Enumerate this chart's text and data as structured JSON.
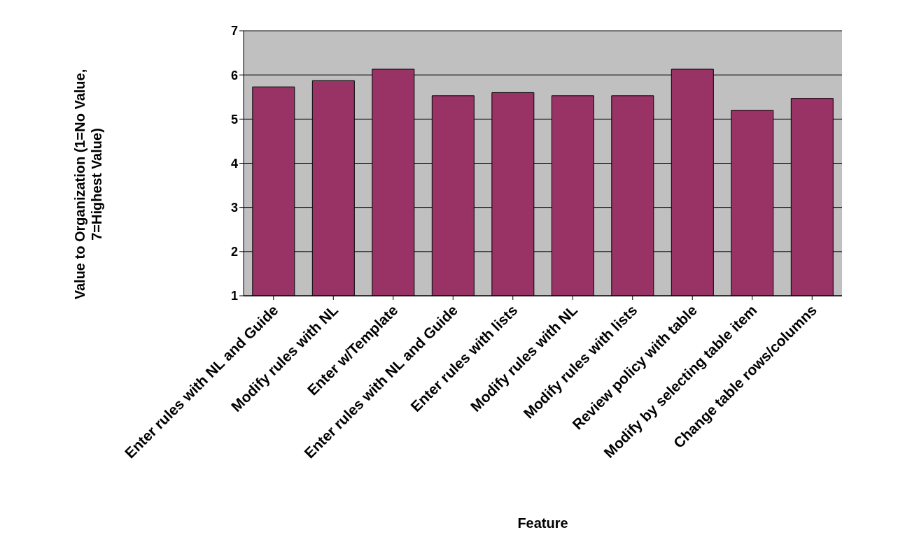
{
  "chart_data": {
    "type": "bar",
    "xlabel": "Feature",
    "ylabel": "Value to Organization (1=No Value, 7=Highest Value)",
    "categories": [
      "Enter rules with NL and Guide",
      "Modify rules with NL",
      "Enter w/Template",
      "Enter rules with NL and Guide",
      "Enter rules with lists",
      "Modify rules with NL",
      "Modify rules with lists",
      "Review policy with table",
      "Modify by selecting table item",
      "Change table rows/columns"
    ],
    "values": [
      5.73,
      5.87,
      6.13,
      5.53,
      5.6,
      5.53,
      5.53,
      6.13,
      5.2,
      5.47
    ],
    "color": "#993366",
    "ylim": [
      1,
      7
    ],
    "yticks": [
      1,
      2,
      3,
      4,
      5,
      6,
      7
    ],
    "grid": "y"
  }
}
